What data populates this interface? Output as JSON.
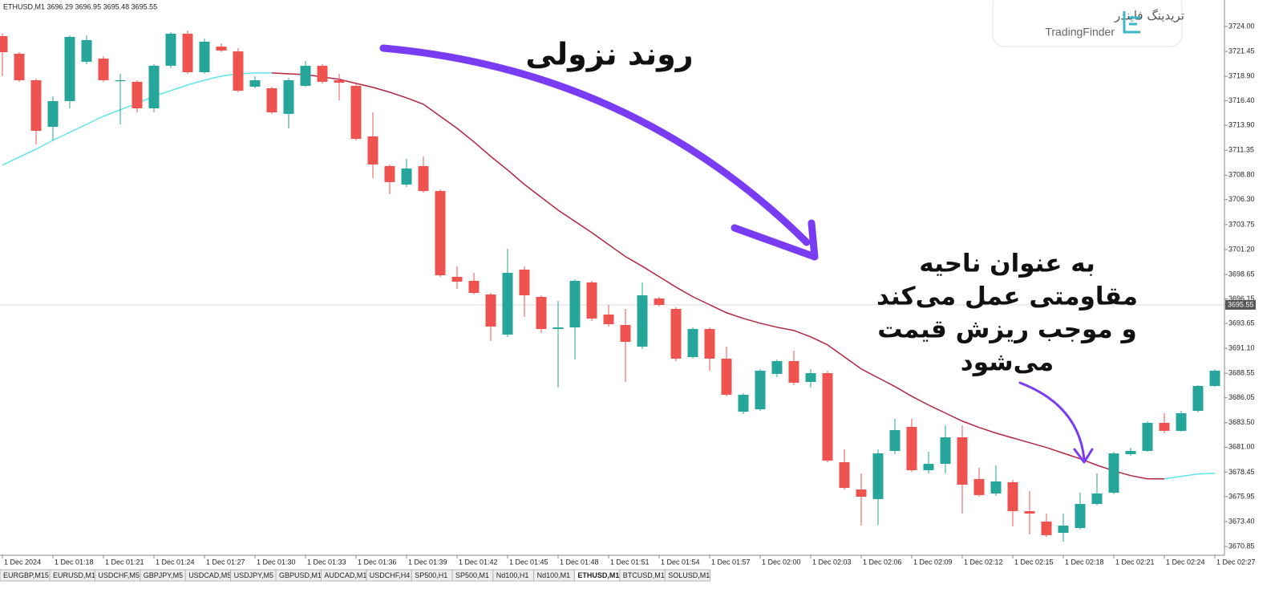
{
  "chart_data": {
    "type": "candlestick",
    "header": "ETHUSD,M1  3696.29 3696.95 3695.48 3695.55",
    "categories": [
      "1 Dec 2024",
      null,
      null,
      "1 Dec 01:18",
      null,
      null,
      "1 Dec 01:21",
      null,
      null,
      "1 Dec 01:24",
      null,
      null,
      "1 Dec 01:27",
      null,
      null,
      "1 Dec 01:30",
      null,
      null,
      "1 Dec 01:33",
      null,
      null,
      "1 Dec 01:36",
      null,
      null,
      "1 Dec 01:39",
      null,
      null,
      "1 Dec 01:42",
      null,
      null,
      "1 Dec 01:45",
      null,
      null,
      "1 Dec 01:48",
      null,
      null,
      "1 Dec 01:51",
      null,
      null,
      "1 Dec 01:54",
      null,
      null,
      "1 Dec 01:57",
      null,
      null,
      "1 Dec 02:00",
      null,
      null,
      "1 Dec 02:03",
      null,
      null,
      "1 Dec 02:06",
      null,
      null,
      "1 Dec 02:09",
      null,
      null,
      "1 Dec 02:12",
      null,
      null,
      "1 Dec 02:15",
      null,
      null,
      "1 Dec 02:18",
      null,
      null,
      "1 Dec 02:21",
      null,
      null,
      "1 Dec 02:24",
      null,
      null,
      "1 Dec 02:27"
    ],
    "open": [
      3723.01,
      3721.21,
      3718.5,
      3713.74,
      3716.37,
      3720.39,
      3720.71,
      3718.42,
      3718.34,
      3715.63,
      3719.98,
      3723.26,
      3719.32,
      3721.94,
      3721.45,
      3717.84,
      3717.68,
      3715.06,
      3717.93,
      3719.98,
      3718.5,
      3717.93,
      3712.76,
      3709.73,
      3707.84,
      3709.73,
      3707.18,
      3698.41,
      3698.0,
      3696.61,
      3692.51,
      3699.15,
      3696.36,
      3693.08,
      3693.24,
      3697.84,
      3694.56,
      3693.49,
      3691.28,
      3696.2,
      3695.13,
      3690.21,
      3693.08,
      3690.05,
      3684.63,
      3684.88,
      3688.49,
      3689.8,
      3687.67,
      3688.57,
      3679.47,
      3676.68,
      3675.7,
      3680.62,
      3683.08,
      3678.65,
      3679.3,
      3682.01,
      3677.75,
      3676.27,
      3677.42,
      3674.47,
      3673.4,
      3672.25,
      3672.74,
      3675.2,
      3676.35,
      3680.29,
      3680.62,
      3683.49,
      3682.67,
      3684.72,
      3687.26
    ],
    "high": [
      3723.26,
      3721.37,
      3718.66,
      3716.86,
      3723.09,
      3723.09,
      3720.96,
      3719.16,
      3718.5,
      3720.14,
      3723.42,
      3723.58,
      3722.76,
      3722.27,
      3721.78,
      3718.91,
      3717.84,
      3718.75,
      3720.47,
      3720.14,
      3719.16,
      3718.09,
      3715.22,
      3709.89,
      3710.46,
      3710.71,
      3707.35,
      3699.48,
      3698.82,
      3696.77,
      3701.28,
      3699.48,
      3696.52,
      3695.95,
      3698.16,
      3698.0,
      3695.54,
      3695.13,
      3697.84,
      3696.36,
      3695.29,
      3693.24,
      3693.24,
      3691.28,
      3686.52,
      3688.98,
      3689.96,
      3690.87,
      3688.98,
      3688.82,
      3680.78,
      3678.32,
      3680.78,
      3683.9,
      3683.9,
      3680.53,
      3683.24,
      3683.24,
      3678.89,
      3679.14,
      3677.66,
      3676.52,
      3674.22,
      3674.22,
      3676.35,
      3678.32,
      3680.53,
      3680.94,
      3683.65,
      3684.47,
      3684.72,
      3687.34,
      3688.98
    ],
    "low": [
      3718.91,
      3718.34,
      3711.94,
      3712.35,
      3715.63,
      3720.14,
      3718.34,
      3713.99,
      3715.22,
      3715.22,
      3719.73,
      3719.16,
      3719.16,
      3721.37,
      3717.27,
      3717.68,
      3715.06,
      3713.58,
      3717.84,
      3718.17,
      3716.45,
      3712.35,
      3708.5,
      3706.86,
      3707.59,
      3707.02,
      3698.41,
      3697.18,
      3696.61,
      3691.85,
      3692.26,
      3694.31,
      3692.67,
      3687.09,
      3689.96,
      3693.9,
      3693.33,
      3687.67,
      3691.03,
      3695.38,
      3689.8,
      3690.05,
      3688.82,
      3686.19,
      3684.39,
      3684.72,
      3688.16,
      3687.34,
      3687.09,
      3679.47,
      3676.68,
      3672.99,
      3673.07,
      3680.29,
      3678.48,
      3678.32,
      3678.32,
      3674.22,
      3675.94,
      3676.02,
      3672.91,
      3672.09,
      3671.84,
      3671.35,
      3672.58,
      3675.04,
      3676.19,
      3680.12,
      3680.53,
      3682.42,
      3682.58,
      3684.55,
      3687.18
    ],
    "close": [
      3721.37,
      3718.5,
      3713.33,
      3716.37,
      3722.93,
      3722.6,
      3718.5,
      3718.5,
      3715.63,
      3719.98,
      3723.26,
      3719.32,
      3722.44,
      3721.53,
      3717.43,
      3718.5,
      3715.22,
      3718.5,
      3719.98,
      3718.34,
      3718.25,
      3712.51,
      3709.89,
      3708.09,
      3709.48,
      3707.18,
      3698.57,
      3697.92,
      3696.77,
      3693.33,
      3698.82,
      3696.52,
      3693.08,
      3693.24,
      3698.0,
      3694.15,
      3693.57,
      3691.77,
      3696.52,
      3695.54,
      3690.05,
      3693.08,
      3690.05,
      3686.36,
      3686.36,
      3688.82,
      3689.8,
      3687.59,
      3688.57,
      3679.63,
      3676.84,
      3675.94,
      3680.37,
      3682.75,
      3678.65,
      3679.3,
      3682.01,
      3677.17,
      3676.11,
      3677.5,
      3674.47,
      3674.22,
      3672.01,
      3672.99,
      3675.2,
      3676.27,
      3680.37,
      3680.62,
      3683.49,
      3682.67,
      3684.47,
      3687.26,
      3688.82
    ],
    "up_color": "#26a69a",
    "down_color": "#ef5350",
    "series": [
      {
        "color": "#5ee6ea",
        "values": [
          3709.82,
          3710.64,
          3711.46,
          3712.36,
          3713.18,
          3714.0,
          3714.82,
          3715.48,
          3716.13,
          3716.87,
          3717.44,
          3718.02,
          3718.51,
          3718.92,
          3719.16,
          3719.25,
          3719.25,
          null,
          null,
          null,
          null,
          null,
          null,
          null,
          null,
          null,
          null,
          null,
          null,
          null,
          null,
          null,
          null,
          null,
          null,
          null,
          null,
          null,
          null,
          null,
          null,
          null,
          null,
          null,
          null,
          null,
          null,
          null,
          null,
          null,
          null,
          null,
          null,
          null,
          null,
          null,
          null,
          null,
          null,
          null,
          null,
          null,
          null,
          null,
          null,
          null,
          null,
          null,
          null,
          3677.77,
          3678.02,
          3678.26,
          3678.34
        ]
      },
      {
        "color": "#b3263f",
        "values": [
          null,
          null,
          null,
          null,
          null,
          null,
          null,
          null,
          null,
          null,
          null,
          null,
          null,
          null,
          null,
          null,
          3719.25,
          3719.16,
          3719.08,
          3718.84,
          3718.59,
          3718.18,
          3717.77,
          3717.28,
          3716.7,
          3716.05,
          3714.82,
          3713.59,
          3712.2,
          3710.72,
          3709.33,
          3707.85,
          3706.54,
          3705.23,
          3704.08,
          3702.93,
          3701.7,
          3700.48,
          3699.49,
          3698.43,
          3697.36,
          3696.38,
          3695.56,
          3694.74,
          3694.16,
          3693.67,
          3693.26,
          3692.93,
          3692.28,
          3691.46,
          3690.23,
          3689.0,
          3688.1,
          3687.2,
          3686.21,
          3685.31,
          3684.49,
          3683.67,
          3683.02,
          3682.44,
          3681.95,
          3681.46,
          3680.97,
          3680.39,
          3679.82,
          3679.16,
          3678.59,
          3678.1,
          3677.77,
          3677.77,
          null,
          null,
          null
        ]
      }
    ],
    "last_price": 3695.55,
    "ylim": [
      3670.12,
      3726.7
    ],
    "yticks": [
      {
        "value": 3724.0,
        "label": "3724.00"
      },
      {
        "value": 3721.45,
        "label": "3721.45"
      },
      {
        "value": 3718.9,
        "label": "3718.90"
      },
      {
        "value": 3716.4,
        "label": "3716.40"
      },
      {
        "value": 3713.9,
        "label": "3713.90"
      },
      {
        "value": 3711.35,
        "label": "3711.35"
      },
      {
        "value": 3708.8,
        "label": "3708.80"
      },
      {
        "value": 3706.3,
        "label": "3706.30"
      },
      {
        "value": 3703.75,
        "label": "3703.75"
      },
      {
        "value": 3701.2,
        "label": "3701.20"
      },
      {
        "value": 3698.65,
        "label": "3698.65"
      },
      {
        "value": 3696.15,
        "label": "3696.15"
      },
      {
        "value": 3693.65,
        "label": "3693.65"
      },
      {
        "value": 3691.1,
        "label": "3691.10"
      },
      {
        "value": 3688.55,
        "label": "3688.55"
      },
      {
        "value": 3686.05,
        "label": "3686.05"
      },
      {
        "value": 3683.5,
        "label": "3683.50"
      },
      {
        "value": 3681.0,
        "label": "3681.00"
      },
      {
        "value": 3678.45,
        "label": "3678.45"
      },
      {
        "value": 3675.95,
        "label": "3675.95"
      },
      {
        "value": 3673.4,
        "label": "3673.40"
      },
      {
        "value": 3670.85,
        "label": "3670.85"
      }
    ],
    "annotations": [
      "روند نزولی",
      "به عنوان ناحیه",
      "مقاومتی عمل می‌کند",
      "و موجب ریزش قیمت",
      "می‌شود"
    ]
  },
  "logo": {
    "title": "تریدینگ فایندر",
    "subtitle": "TradingFinder"
  },
  "tabs": [
    {
      "label": "EURGBP,M15"
    },
    {
      "label": "EURUSD,M1"
    },
    {
      "label": "USDCHF,M5"
    },
    {
      "label": "GBPJPY,M5"
    },
    {
      "label": "USDCAD,M5"
    },
    {
      "label": "USDJPY,M5"
    },
    {
      "label": "GBPUSD,M1"
    },
    {
      "label": "AUDCAD,M1"
    },
    {
      "label": "USDCHF,H4"
    },
    {
      "label": "SP500,H1"
    },
    {
      "label": "SP500,M1"
    },
    {
      "label": "Nd100,H1"
    },
    {
      "label": "Nd100,M1"
    },
    {
      "label": "ETHUSD,M1",
      "active": true
    },
    {
      "label": "BTCUSD,M1"
    },
    {
      "label": "SOLUSD,M1"
    }
  ]
}
